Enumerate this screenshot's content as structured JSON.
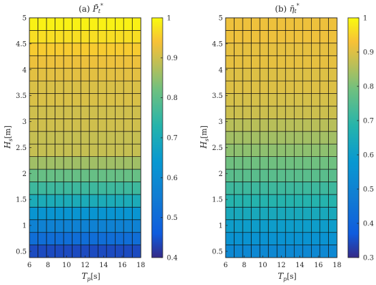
{
  "chart_data": [
    {
      "type": "heatmap",
      "title": "(a) P̄*t",
      "title_text": "(a)",
      "title_symbol": "P̄",
      "title_sub": "t",
      "title_sup": "*",
      "xlabel": "Tp[s]",
      "xlabel_symbol": "T",
      "xlabel_sub": "p",
      "xlabel_unit": "[s]",
      "ylabel": "Hs[m]",
      "ylabel_symbol": "H",
      "ylabel_sub": "s",
      "ylabel_unit": "[m]",
      "x": [
        6,
        7,
        8,
        9,
        10,
        11,
        12,
        13,
        14,
        15,
        16,
        17,
        18
      ],
      "y": [
        0.5,
        0.75,
        1.0,
        1.25,
        1.5,
        1.75,
        2.0,
        2.25,
        2.5,
        2.75,
        3.0,
        3.25,
        3.5,
        3.75,
        4.0,
        4.25,
        4.5,
        4.75,
        5.0
      ],
      "row_values": [
        0.44,
        0.51,
        0.57,
        0.63,
        0.7,
        0.76,
        0.81,
        0.86,
        0.89,
        0.89,
        0.9,
        0.9,
        0.91,
        0.91,
        0.92,
        0.93,
        0.95,
        0.97,
        0.99
      ],
      "xlim": [
        6,
        18
      ],
      "ylim": [
        0.38,
        5.0
      ],
      "xticks": [
        "6",
        "8",
        "10",
        "12",
        "14",
        "16",
        "18"
      ],
      "yticks": [
        "0.5",
        "1",
        "1.5",
        "2",
        "2.5",
        "3",
        "3.5",
        "4",
        "4.5",
        "5"
      ],
      "colorbar": {
        "range": [
          0.4,
          1.0
        ],
        "ticks": [
          "0.4",
          "0.5",
          "0.6",
          "0.7",
          "0.8",
          "0.9",
          "1"
        ]
      },
      "colormap": "parula"
    },
    {
      "type": "heatmap",
      "title": "(b) η̄*t",
      "title_text": "(b)",
      "title_symbol": "η̄",
      "title_sub": "t",
      "title_sup": "*",
      "xlabel": "Tp[s]",
      "xlabel_symbol": "T",
      "xlabel_sub": "p",
      "xlabel_unit": "[s]",
      "ylabel": "Hs[m]",
      "ylabel_symbol": "H",
      "ylabel_sub": "s",
      "ylabel_unit": "[m]",
      "x": [
        6,
        7,
        8,
        9,
        10,
        11,
        12,
        13,
        14,
        15,
        16,
        17,
        18
      ],
      "y": [
        0.5,
        0.75,
        1.0,
        1.25,
        1.5,
        1.75,
        2.0,
        2.25,
        2.5,
        2.75,
        3.0,
        3.25,
        3.5,
        3.75,
        4.0,
        4.25,
        4.5,
        4.75,
        5.0
      ],
      "row_values": [
        0.52,
        0.56,
        0.6,
        0.64,
        0.68,
        0.72,
        0.76,
        0.79,
        0.82,
        0.84,
        0.86,
        0.88,
        0.89,
        0.9,
        0.9,
        0.91,
        0.91,
        0.92,
        0.92
      ],
      "xlim": [
        6,
        18
      ],
      "ylim": [
        0.38,
        5.0
      ],
      "xticks": [
        "6",
        "8",
        "10",
        "12",
        "14",
        "16",
        "18"
      ],
      "yticks": [
        "0.5",
        "1",
        "1.5",
        "2",
        "2.5",
        "3",
        "3.5",
        "4",
        "4.5",
        "5"
      ],
      "colorbar": {
        "range": [
          0.3,
          1.0
        ],
        "ticks": [
          "0.3",
          "0.4",
          "0.5",
          "0.6",
          "0.7",
          "0.8",
          "0.9",
          "1"
        ]
      },
      "colormap": "parula"
    }
  ]
}
